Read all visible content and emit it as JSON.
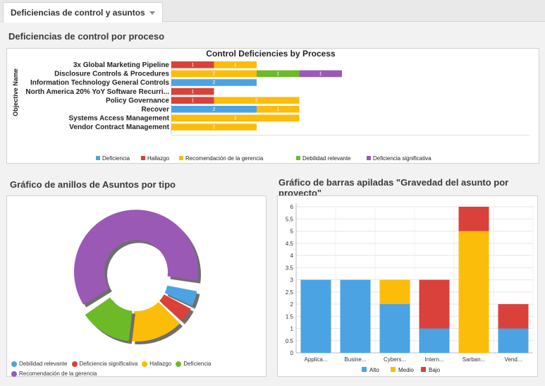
{
  "tab": {
    "label": "Deficiencias de control y asuntos"
  },
  "sections": {
    "process_title": "Deficiencias de control por proceso",
    "donut_title": "Gráfico de anillos de Asuntos por tipo",
    "stacked_title": "Gráfico de barras apiladas \"Gravedad del asunto por proyecto\""
  },
  "colors": {
    "Deficiencia": "#4ba3e3",
    "Hallazgo": "#d9413a",
    "Recomendación de la gerencia": "#fcbc0a",
    "Debilidad relevante": "#6cba28",
    "Deficiencia significativa": "#9b59b6",
    "Alto": "#4ba3e3",
    "Medio": "#fcbc0a",
    "Bajo": "#d9413a"
  },
  "chart_data": [
    {
      "type": "bar",
      "orientation": "horizontal",
      "title": "Control Deficiencies by Process",
      "ylabel": "Objective Name",
      "categories": [
        "3x Global Marketing Pipeline",
        "Disclosure Controls & Procedures",
        "Information Technology General Controls",
        "North America 20% YoY Software Recurri...",
        "Policy Governance",
        "Recover",
        "Systems Access Management",
        "Vendor Contract Management"
      ],
      "series": [
        {
          "name": "Deficiencia",
          "values": [
            0,
            0,
            2,
            0,
            0,
            2,
            0,
            0
          ]
        },
        {
          "name": "Hallazgo",
          "values": [
            1,
            0,
            0,
            1,
            1,
            0,
            0,
            0
          ]
        },
        {
          "name": "Recomendación de la gerencia",
          "values": [
            1,
            2,
            0,
            0,
            2,
            1,
            3,
            2
          ]
        },
        {
          "name": "Debilidad relevante",
          "values": [
            0,
            1,
            0,
            0,
            0,
            0,
            0,
            0
          ]
        },
        {
          "name": "Deficiencia significativa",
          "values": [
            0,
            1,
            0,
            0,
            0,
            0,
            0,
            0
          ]
        }
      ],
      "legend_position": "bottom"
    },
    {
      "type": "pie",
      "variant": "donut",
      "slices": [
        {
          "name": "Recomendación de la gerencia",
          "value": 13,
          "color_key": "Deficiencia significativa"
        },
        {
          "name": "Deficiencia",
          "value": 1,
          "color_key": "Deficiencia"
        },
        {
          "name": "Hallazgo",
          "value": 1,
          "color_key": "Hallazgo"
        },
        {
          "name": "Debilidad relevante",
          "value": 3,
          "color_key": "Recomendación de la gerencia"
        },
        {
          "name": "Deficiencia significativa",
          "value": 3,
          "color_key": "Debilidad relevante"
        }
      ],
      "legend": [
        {
          "name": "Debilidad relevante",
          "color": "#4ba3e3"
        },
        {
          "name": "Deficiencia significativa",
          "color": "#d9413a"
        },
        {
          "name": "Hallazgo",
          "color": "#fcbc0a"
        },
        {
          "name": "Deficiencia",
          "color": "#6cba28"
        },
        {
          "name": "Recomendación de la gerencia",
          "color": "#9b59b6"
        }
      ],
      "legend_position": "bottom"
    },
    {
      "type": "bar",
      "stacked": true,
      "categories": [
        "Applica...",
        "Busine...",
        "Cybers...",
        "Intern...",
        "Sarban...",
        "Vend..."
      ],
      "series": [
        {
          "name": "Alto",
          "values": [
            3,
            3,
            2,
            1,
            0,
            1
          ]
        },
        {
          "name": "Medio",
          "values": [
            0,
            0,
            1,
            0,
            5,
            0
          ]
        },
        {
          "name": "Bajo",
          "values": [
            0,
            0,
            0,
            2,
            1,
            1
          ]
        }
      ],
      "ylim": [
        0,
        6
      ],
      "yticks": [
        "0",
        "0.5",
        "1",
        "1.5",
        "2",
        "2.5",
        "3",
        "3.5",
        "4",
        "4.5",
        "5",
        "5.5",
        "6"
      ],
      "grid": true,
      "legend_position": "bottom"
    }
  ]
}
